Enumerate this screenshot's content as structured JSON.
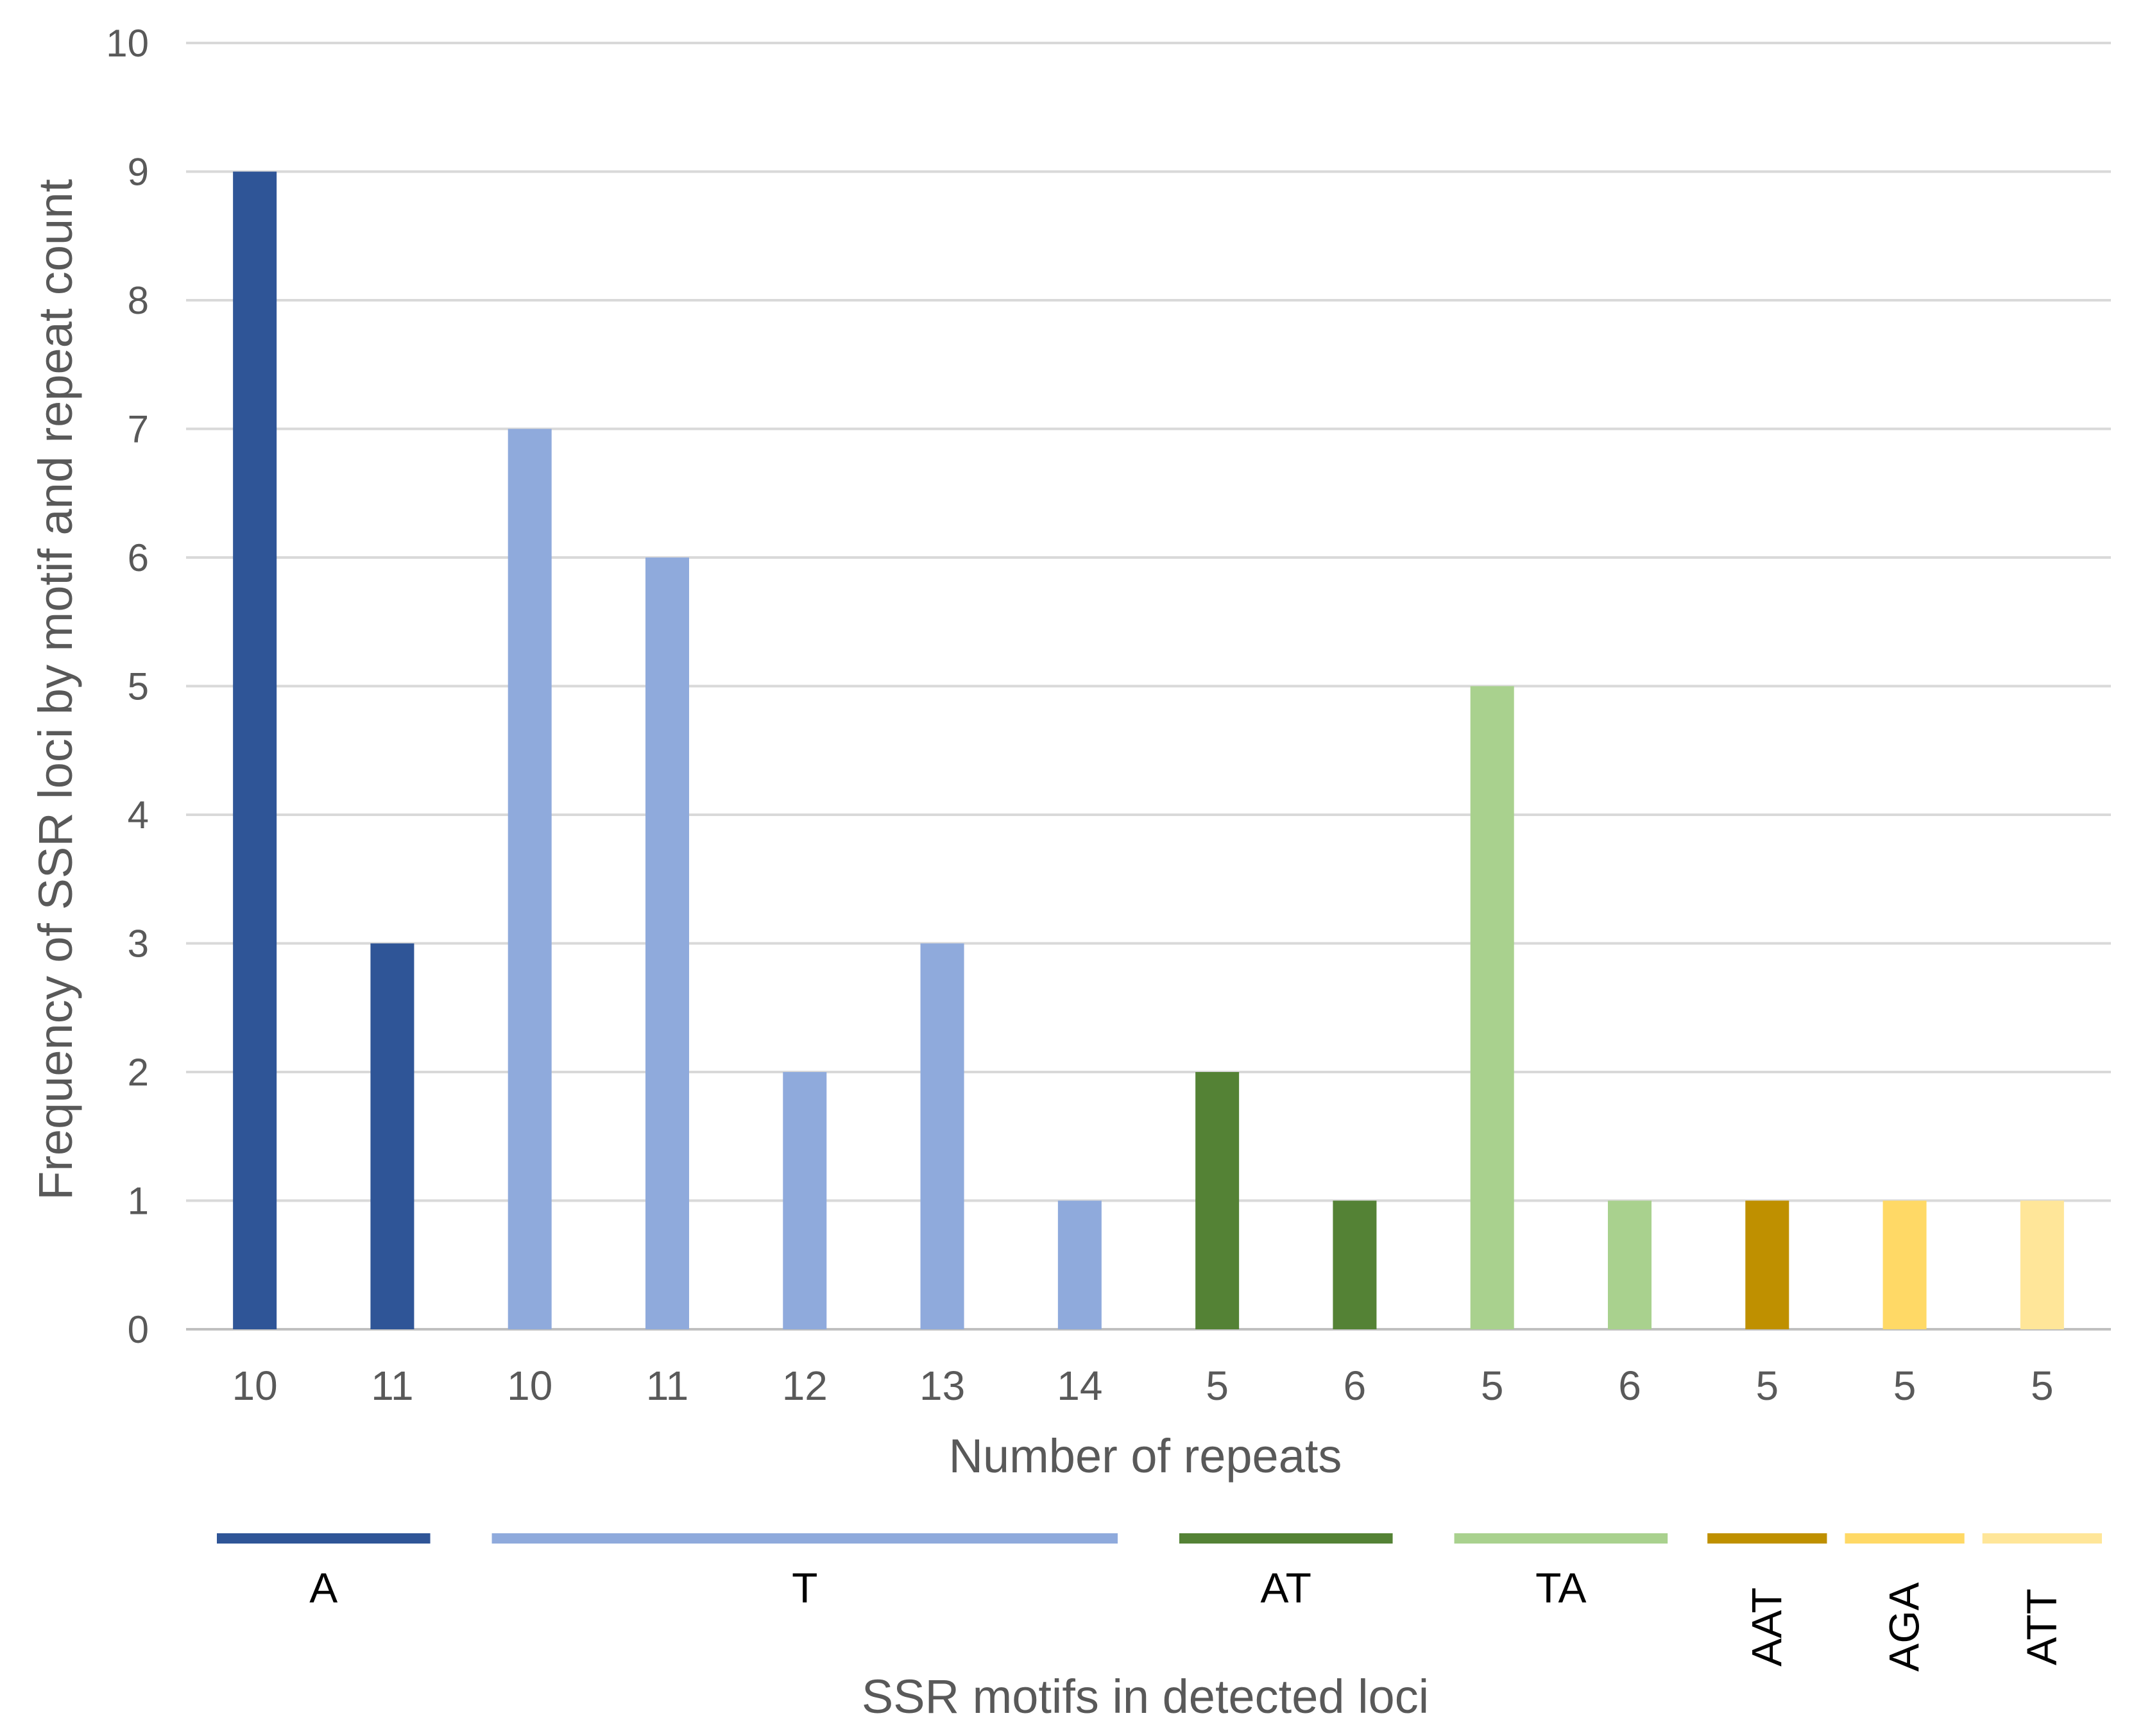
{
  "chart_data": {
    "type": "bar",
    "title": "",
    "xlabel": "Number of repeats",
    "ylabel": "Frequency of SSR loci by motif and repeat count",
    "group_axis_label": "SSR motifs in detected loci",
    "ylim": [
      0,
      10
    ],
    "yticks": [
      0,
      1,
      2,
      3,
      4,
      5,
      6,
      7,
      8,
      9,
      10
    ],
    "grid": true,
    "categories": [
      "10",
      "11",
      "10",
      "11",
      "12",
      "13",
      "14",
      "5",
      "6",
      "5",
      "6",
      "5",
      "5",
      "5"
    ],
    "values": [
      9,
      3,
      7,
      6,
      2,
      3,
      1,
      2,
      1,
      5,
      1,
      1,
      1,
      1
    ],
    "motif_of_bar": [
      "A",
      "A",
      "T",
      "T",
      "T",
      "T",
      "T",
      "AT",
      "AT",
      "TA",
      "TA",
      "AAT",
      "AGA",
      "ATT"
    ],
    "groups": [
      {
        "name": "A",
        "start": 0,
        "end": 1,
        "color": "#2F5597"
      },
      {
        "name": "T",
        "start": 2,
        "end": 6,
        "color": "#8FAADC"
      },
      {
        "name": "AT",
        "start": 7,
        "end": 8,
        "color": "#548235"
      },
      {
        "name": "TA",
        "start": 9,
        "end": 10,
        "color": "#A9D18E"
      },
      {
        "name": "AAT",
        "start": 11,
        "end": 11,
        "color": "#BF9000"
      },
      {
        "name": "AGA",
        "start": 12,
        "end": 12,
        "color": "#FFD966"
      },
      {
        "name": "ATT",
        "start": 13,
        "end": 13,
        "color": "#FFE699"
      }
    ],
    "grid_color": "#D9D9D9",
    "axis_color": "#BFBFBF"
  }
}
